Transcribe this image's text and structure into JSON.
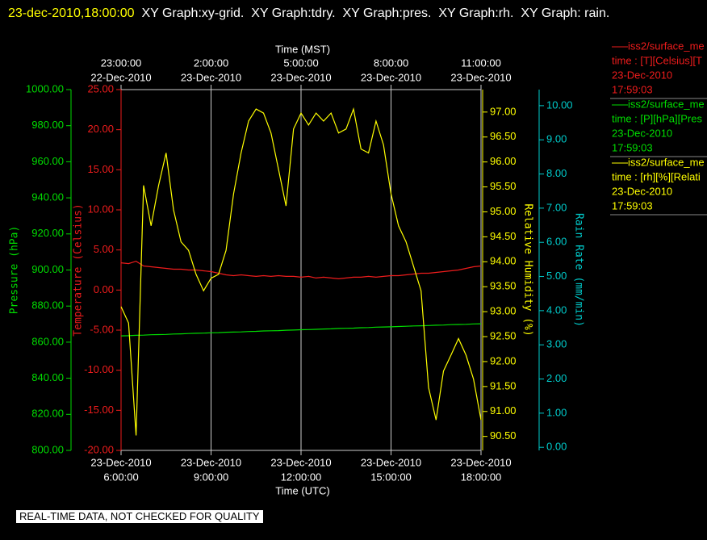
{
  "chart_data": {
    "type": "line",
    "title": "23-dec-2010,18:00:00",
    "subtitle": "XY Graph:xy-grid.  XY Graph:tdry.  XY Graph:pres.  XY Graph:rh.  XY Graph: rain.",
    "xlabel": "Time (UTC)",
    "x2label": "Time (MST)",
    "footer": "REAL-TIME DATA, NOT CHECKED FOR QUALITY",
    "grid": true,
    "xlim": [
      "2010-12-23T06:00Z",
      "2010-12-23T18:00Z"
    ],
    "xticks": [
      {
        "value": "2010-12-23T06:00Z",
        "label": [
          "23-Dec-2010",
          "6:00:00"
        ]
      },
      {
        "value": "2010-12-23T09:00Z",
        "label": [
          "23-Dec-2010",
          "9:00:00"
        ]
      },
      {
        "value": "2010-12-23T12:00Z",
        "label": [
          "23-Dec-2010",
          "12:00:00"
        ]
      },
      {
        "value": "2010-12-23T15:00Z",
        "label": [
          "23-Dec-2010",
          "15:00:00"
        ]
      },
      {
        "value": "2010-12-23T18:00Z",
        "label": [
          "23-Dec-2010",
          "18:00:00"
        ]
      }
    ],
    "x2ticks": [
      {
        "value": "2010-12-22T23:00-07:00",
        "label": [
          "23:00:00",
          "22-Dec-2010"
        ]
      },
      {
        "value": "2010-12-23T02:00-07:00",
        "label": [
          "2:00:00",
          "23-Dec-2010"
        ]
      },
      {
        "value": "2010-12-23T05:00-07:00",
        "label": [
          "5:00:00",
          "23-Dec-2010"
        ]
      },
      {
        "value": "2010-12-23T08:00-07:00",
        "label": [
          "8:00:00",
          "23-Dec-2010"
        ]
      },
      {
        "value": "2010-12-23T11:00-07:00",
        "label": [
          "11:00:00",
          "23-Dec-2010"
        ]
      }
    ],
    "axes": [
      {
        "label": "Pressure (hPa)",
        "color": "#00dd00",
        "lim": [
          800,
          1000
        ],
        "ticks": [
          {
            "value": 800,
            "label": "800.00"
          },
          {
            "value": 820,
            "label": "820.00"
          },
          {
            "value": 840,
            "label": "840.00"
          },
          {
            "value": 860,
            "label": "860.00"
          },
          {
            "value": 880,
            "label": "880.00"
          },
          {
            "value": 900,
            "label": "900.00"
          },
          {
            "value": 920,
            "label": "920.00"
          },
          {
            "value": 940,
            "label": "940.00"
          },
          {
            "value": 960,
            "label": "960.00"
          },
          {
            "value": 980,
            "label": "980.00"
          },
          {
            "value": 1000,
            "label": "1000.00"
          }
        ]
      },
      {
        "label": "Temperature (Celsius)",
        "color": "#ee1c1c",
        "lim": [
          -20,
          25
        ],
        "ticks": [
          {
            "value": -20,
            "label": "-20.00"
          },
          {
            "value": -15,
            "label": "-15.00"
          },
          {
            "value": -10,
            "label": "-10.00"
          },
          {
            "value": -5,
            "label": "-5.00"
          },
          {
            "value": 0,
            "label": "0.00"
          },
          {
            "value": 5,
            "label": "5.00"
          },
          {
            "value": 10,
            "label": "10.00"
          },
          {
            "value": 15,
            "label": "15.00"
          },
          {
            "value": 20,
            "label": "20.00"
          },
          {
            "value": 25,
            "label": "25.00"
          }
        ]
      },
      {
        "label": "Relative Humidity (%)",
        "color": "#ffff00",
        "lim": [
          90.22,
          97.45
        ],
        "ticks": [
          {
            "value": 90.5,
            "label": "90.50"
          },
          {
            "value": 91,
            "label": "91.00"
          },
          {
            "value": 91.5,
            "label": "91.50"
          },
          {
            "value": 92,
            "label": "92.00"
          },
          {
            "value": 92.5,
            "label": "92.50"
          },
          {
            "value": 93,
            "label": "93.00"
          },
          {
            "value": 93.5,
            "label": "93.50"
          },
          {
            "value": 94,
            "label": "94.00"
          },
          {
            "value": 94.5,
            "label": "94.50"
          },
          {
            "value": 95,
            "label": "95.00"
          },
          {
            "value": 95.5,
            "label": "95.50"
          },
          {
            "value": 96,
            "label": "96.00"
          },
          {
            "value": 96.5,
            "label": "96.50"
          },
          {
            "value": 97,
            "label": "97.00"
          }
        ]
      },
      {
        "label": "Rain Rate (mm/min)",
        "color": "#00cccc",
        "lim": [
          -0.09,
          10.47
        ],
        "ticks": [
          {
            "value": 0,
            "label": "0.00"
          },
          {
            "value": 1,
            "label": "1.00"
          },
          {
            "value": 2,
            "label": "2.00"
          },
          {
            "value": 3,
            "label": "3.00"
          },
          {
            "value": 4,
            "label": "4.00"
          },
          {
            "value": 5,
            "label": "5.00"
          },
          {
            "value": 6,
            "label": "6.00"
          },
          {
            "value": 7,
            "label": "7.00"
          },
          {
            "value": 8,
            "label": "8.00"
          },
          {
            "value": 9,
            "label": "9.00"
          },
          {
            "value": 10,
            "label": "10.00"
          }
        ]
      }
    ],
    "x": [
      "2010-12-23T06:00Z",
      "2010-12-23T06:15Z",
      "2010-12-23T06:30Z",
      "2010-12-23T06:45Z",
      "2010-12-23T07:00Z",
      "2010-12-23T07:15Z",
      "2010-12-23T07:30Z",
      "2010-12-23T07:45Z",
      "2010-12-23T08:00Z",
      "2010-12-23T08:15Z",
      "2010-12-23T08:30Z",
      "2010-12-23T08:45Z",
      "2010-12-23T09:00Z",
      "2010-12-23T09:15Z",
      "2010-12-23T09:30Z",
      "2010-12-23T09:45Z",
      "2010-12-23T10:00Z",
      "2010-12-23T10:15Z",
      "2010-12-23T10:30Z",
      "2010-12-23T10:45Z",
      "2010-12-23T11:00Z",
      "2010-12-23T11:15Z",
      "2010-12-23T11:30Z",
      "2010-12-23T11:45Z",
      "2010-12-23T12:00Z",
      "2010-12-23T12:15Z",
      "2010-12-23T12:30Z",
      "2010-12-23T12:45Z",
      "2010-12-23T13:00Z",
      "2010-12-23T13:15Z",
      "2010-12-23T13:30Z",
      "2010-12-23T13:45Z",
      "2010-12-23T14:00Z",
      "2010-12-23T14:15Z",
      "2010-12-23T14:30Z",
      "2010-12-23T14:45Z",
      "2010-12-23T15:00Z",
      "2010-12-23T15:15Z",
      "2010-12-23T15:30Z",
      "2010-12-23T15:45Z",
      "2010-12-23T16:00Z",
      "2010-12-23T16:15Z",
      "2010-12-23T16:30Z",
      "2010-12-23T16:45Z",
      "2010-12-23T17:00Z",
      "2010-12-23T17:15Z",
      "2010-12-23T17:30Z",
      "2010-12-23T17:45Z",
      "2010-12-23T18:00Z"
    ],
    "series": [
      {
        "name": "iss2/surface_me",
        "legend_text": "time : [T][Celsius][T",
        "legend_date": "23-Dec-2010",
        "legend_time": "17:59:03",
        "color": "#ee1c1c",
        "axis": 1,
        "values": [
          3.4,
          3.3,
          3.6,
          3.0,
          2.9,
          2.8,
          2.7,
          2.6,
          2.6,
          2.5,
          2.5,
          2.4,
          2.3,
          2.1,
          1.9,
          1.8,
          1.9,
          1.8,
          1.7,
          1.8,
          1.7,
          1.8,
          1.7,
          1.7,
          1.6,
          1.7,
          1.5,
          1.6,
          1.5,
          1.4,
          1.5,
          1.6,
          1.6,
          1.7,
          1.6,
          1.7,
          1.8,
          1.8,
          1.9,
          2.0,
          2.1,
          2.1,
          2.2,
          2.3,
          2.4,
          2.5,
          2.7,
          2.9,
          3.0
        ]
      },
      {
        "name": "iss2/surface_me",
        "legend_text": "time : [P][hPa][Pres",
        "legend_date": "23-Dec-2010",
        "legend_time": "17:59:03",
        "color": "#00dd00",
        "axis": 0,
        "values": [
          863.5,
          863.6,
          863.8,
          863.9,
          864.1,
          864.2,
          864.3,
          864.5,
          864.6,
          864.8,
          864.9,
          865.0,
          865.2,
          865.3,
          865.5,
          865.6,
          865.7,
          865.9,
          866.0,
          866.2,
          866.3,
          866.4,
          866.6,
          866.7,
          866.9,
          867.0,
          867.1,
          867.3,
          867.4,
          867.6,
          867.7,
          867.8,
          868.0,
          868.1,
          868.3,
          868.4,
          868.5,
          868.7,
          868.8,
          869.0,
          869.1,
          869.2,
          869.4,
          869.5,
          869.7,
          869.8,
          869.9,
          870.1,
          870.2
        ]
      },
      {
        "name": "iss2/surface_me",
        "legend_text": "time : [rh][%][Relati",
        "legend_date": "23-Dec-2010",
        "legend_time": "17:59:03",
        "color": "#ffff00",
        "axis": 2,
        "values": [
          93.1,
          92.77,
          90.52,
          95.53,
          94.72,
          95.53,
          96.18,
          95.04,
          94.4,
          94.23,
          93.75,
          93.42,
          93.67,
          93.75,
          94.23,
          95.36,
          96.18,
          96.82,
          97.06,
          96.98,
          96.58,
          95.85,
          95.12,
          96.66,
          96.98,
          96.74,
          96.98,
          96.82,
          96.98,
          96.58,
          96.66,
          97.06,
          96.26,
          96.18,
          96.82,
          96.34,
          95.36,
          94.72,
          94.4,
          93.91,
          93.42,
          91.48,
          90.83,
          91.81,
          92.13,
          92.46,
          92.13,
          91.65,
          90.83
        ]
      }
    ]
  }
}
